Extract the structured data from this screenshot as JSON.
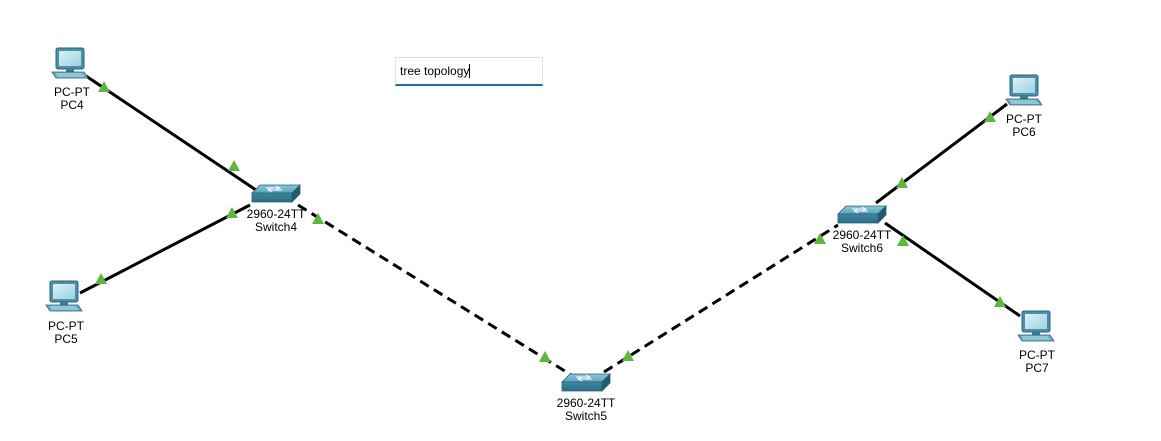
{
  "note": {
    "text": "tree topology"
  },
  "devices": [
    {
      "id": "pc4",
      "type": "pc",
      "model": "PC-PT",
      "name": "PC4"
    },
    {
      "id": "pc5",
      "type": "pc",
      "model": "PC-PT",
      "name": "PC5"
    },
    {
      "id": "pc6",
      "type": "pc",
      "model": "PC-PT",
      "name": "PC6"
    },
    {
      "id": "pc7",
      "type": "pc",
      "model": "PC-PT",
      "name": "PC7"
    },
    {
      "id": "switch4",
      "type": "switch",
      "model": "2960-24TT",
      "name": "Switch4"
    },
    {
      "id": "switch5",
      "type": "switch",
      "model": "2960-24TT",
      "name": "Switch5"
    },
    {
      "id": "switch6",
      "type": "switch",
      "model": "2960-24TT",
      "name": "Switch6"
    }
  ],
  "links": [
    {
      "from": "pc4",
      "to": "switch4",
      "style": "straight-through",
      "status": "up"
    },
    {
      "from": "pc5",
      "to": "switch4",
      "style": "straight-through",
      "status": "up"
    },
    {
      "from": "switch4",
      "to": "switch5",
      "style": "crossover",
      "status": "up"
    },
    {
      "from": "switch5",
      "to": "switch6",
      "style": "crossover",
      "status": "up"
    },
    {
      "from": "pc6",
      "to": "switch6",
      "style": "straight-through",
      "status": "up"
    },
    {
      "from": "pc7",
      "to": "switch6",
      "style": "straight-through",
      "status": "up"
    }
  ],
  "colors": {
    "link": "#000000",
    "status_up": "#5cb83a",
    "device": "#4a90a8"
  },
  "icons": {
    "pc": "desktop-pc-icon",
    "switch": "network-switch-icon",
    "status": "link-up-triangle-icon"
  }
}
